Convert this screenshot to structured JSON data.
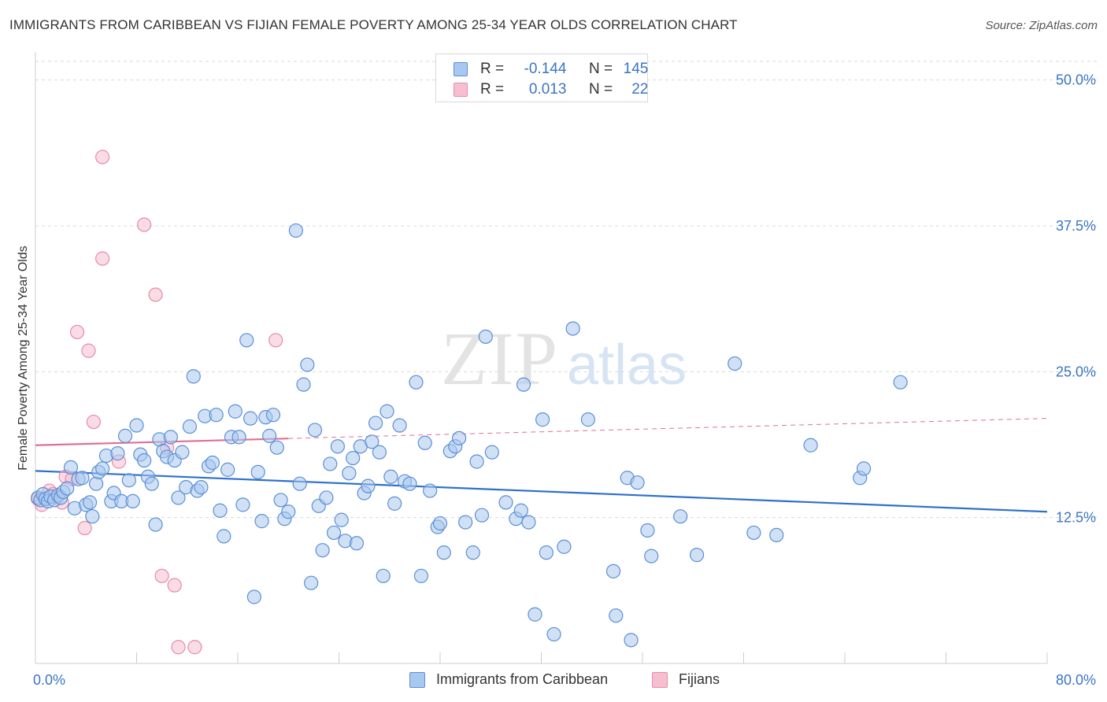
{
  "header": {
    "title": "IMMIGRANTS FROM CARIBBEAN VS FIJIAN FEMALE POVERTY AMONG 25-34 YEAR OLDS CORRELATION CHART",
    "source": "Source: ZipAtlas.com"
  },
  "watermark": {
    "zip": "ZIP",
    "atlas": "atlas"
  },
  "legend_top": {
    "rows": [
      {
        "r_label": "R =",
        "r_value": "-0.144",
        "n_label": "N =",
        "n_value": "145"
      },
      {
        "r_label": "R =",
        "r_value": "0.013",
        "n_label": "N =",
        "n_value": "22"
      }
    ]
  },
  "legend_bottom": {
    "items": [
      "Immigrants from Caribbean",
      "Fijians"
    ]
  },
  "colors": {
    "blue_fill": "#a9c8ef",
    "blue_stroke": "#5b8fd6",
    "blue_line": "#2e6fce",
    "pink_fill": "#f6bfd0",
    "pink_stroke": "#e88aa8",
    "pink_line": "#e06f96",
    "grid": "#d9d9d9",
    "axis_text": "#3a75c4"
  },
  "chart_data": {
    "type": "scatter",
    "title": "IMMIGRANTS FROM CARIBBEAN VS FIJIAN FEMALE POVERTY AMONG 25-34 YEAR OLDS CORRELATION CHART",
    "xlabel": "",
    "ylabel": "Female Poverty Among 25-34 Year Olds",
    "xlim": [
      0,
      80
    ],
    "ylim": [
      0,
      52
    ],
    "x_tick_labels": [
      "0.0%",
      "80.0%"
    ],
    "y_ticks": [
      12.5,
      25.0,
      37.5,
      50.0
    ],
    "y_tick_labels": [
      "12.5%",
      "25.0%",
      "37.5%",
      "50.0%"
    ],
    "grid": "horizontal dashed",
    "legend_position": "top-center",
    "series": [
      {
        "name": "Immigrants from Caribbean",
        "R": -0.144,
        "N": 145,
        "trend": {
          "x": [
            0,
            80
          ],
          "y": [
            16.5,
            13.0
          ]
        },
        "points": [
          [
            0.2,
            14.2
          ],
          [
            0.4,
            14.0
          ],
          [
            0.6,
            14.5
          ],
          [
            0.8,
            14.1
          ],
          [
            1.0,
            13.9
          ],
          [
            1.2,
            14.3
          ],
          [
            1.5,
            14.0
          ],
          [
            1.8,
            14.4
          ],
          [
            2.0,
            14.2
          ],
          [
            2.2,
            14.7
          ],
          [
            2.5,
            15.0
          ],
          [
            2.8,
            16.8
          ],
          [
            3.1,
            13.3
          ],
          [
            3.4,
            15.8
          ],
          [
            3.7,
            15.9
          ],
          [
            4.0,
            13.6
          ],
          [
            4.3,
            13.8
          ],
          [
            4.5,
            12.6
          ],
          [
            4.8,
            15.4
          ],
          [
            5.0,
            16.4
          ],
          [
            5.3,
            16.7
          ],
          [
            5.6,
            17.8
          ],
          [
            6.0,
            13.9
          ],
          [
            6.2,
            14.6
          ],
          [
            6.5,
            18.0
          ],
          [
            6.8,
            13.9
          ],
          [
            7.1,
            19.5
          ],
          [
            7.4,
            15.7
          ],
          [
            7.7,
            13.9
          ],
          [
            8.0,
            20.4
          ],
          [
            8.3,
            17.9
          ],
          [
            8.6,
            17.4
          ],
          [
            8.9,
            16.0
          ],
          [
            9.2,
            15.4
          ],
          [
            9.5,
            11.9
          ],
          [
            9.8,
            19.2
          ],
          [
            10.1,
            18.2
          ],
          [
            10.4,
            17.7
          ],
          [
            10.7,
            19.4
          ],
          [
            11.0,
            17.4
          ],
          [
            11.3,
            14.2
          ],
          [
            11.6,
            18.1
          ],
          [
            11.9,
            15.1
          ],
          [
            12.2,
            20.3
          ],
          [
            12.5,
            24.6
          ],
          [
            12.8,
            14.8
          ],
          [
            13.1,
            15.1
          ],
          [
            13.4,
            21.2
          ],
          [
            13.7,
            16.9
          ],
          [
            14.0,
            17.2
          ],
          [
            14.3,
            21.3
          ],
          [
            14.6,
            13.1
          ],
          [
            14.9,
            10.9
          ],
          [
            15.2,
            16.6
          ],
          [
            15.5,
            19.4
          ],
          [
            15.8,
            21.6
          ],
          [
            16.1,
            19.4
          ],
          [
            16.4,
            13.6
          ],
          [
            16.7,
            27.7
          ],
          [
            17.0,
            21.0
          ],
          [
            17.3,
            5.7
          ],
          [
            17.6,
            16.4
          ],
          [
            17.9,
            12.2
          ],
          [
            18.2,
            21.1
          ],
          [
            18.5,
            19.5
          ],
          [
            18.8,
            21.3
          ],
          [
            19.1,
            18.5
          ],
          [
            19.4,
            14.0
          ],
          [
            19.7,
            12.4
          ],
          [
            20.0,
            13.0
          ],
          [
            20.6,
            37.1
          ],
          [
            20.9,
            15.4
          ],
          [
            21.2,
            23.9
          ],
          [
            21.5,
            25.6
          ],
          [
            21.8,
            6.9
          ],
          [
            22.1,
            20.0
          ],
          [
            22.4,
            13.5
          ],
          [
            22.7,
            9.7
          ],
          [
            23.0,
            14.2
          ],
          [
            23.3,
            17.1
          ],
          [
            23.6,
            11.2
          ],
          [
            23.9,
            18.6
          ],
          [
            24.2,
            12.3
          ],
          [
            24.5,
            10.5
          ],
          [
            24.8,
            16.3
          ],
          [
            25.1,
            17.6
          ],
          [
            25.4,
            10.3
          ],
          [
            25.7,
            18.6
          ],
          [
            26.0,
            14.6
          ],
          [
            26.3,
            15.2
          ],
          [
            26.6,
            19.0
          ],
          [
            26.9,
            20.6
          ],
          [
            27.2,
            18.1
          ],
          [
            27.5,
            7.5
          ],
          [
            27.8,
            21.6
          ],
          [
            28.1,
            16.0
          ],
          [
            28.4,
            13.7
          ],
          [
            28.8,
            20.4
          ],
          [
            29.2,
            15.6
          ],
          [
            29.6,
            15.4
          ],
          [
            30.1,
            24.1
          ],
          [
            30.5,
            7.5
          ],
          [
            30.8,
            18.9
          ],
          [
            31.2,
            14.8
          ],
          [
            31.8,
            11.7
          ],
          [
            32.0,
            12.0
          ],
          [
            32.3,
            9.5
          ],
          [
            32.8,
            18.2
          ],
          [
            33.2,
            18.6
          ],
          [
            33.5,
            19.3
          ],
          [
            34.0,
            12.1
          ],
          [
            34.6,
            9.5
          ],
          [
            34.9,
            17.3
          ],
          [
            35.3,
            12.7
          ],
          [
            35.6,
            28.0
          ],
          [
            36.1,
            18.1
          ],
          [
            37.2,
            13.8
          ],
          [
            38.0,
            12.4
          ],
          [
            38.4,
            13.1
          ],
          [
            38.6,
            23.9
          ],
          [
            39.0,
            12.1
          ],
          [
            39.5,
            4.2
          ],
          [
            40.1,
            20.9
          ],
          [
            40.4,
            9.5
          ],
          [
            41.0,
            2.5
          ],
          [
            41.8,
            10.0
          ],
          [
            42.5,
            28.7
          ],
          [
            43.7,
            20.9
          ],
          [
            45.7,
            7.9
          ],
          [
            45.9,
            4.1
          ],
          [
            46.8,
            15.9
          ],
          [
            47.1,
            2.0
          ],
          [
            47.6,
            15.5
          ],
          [
            48.4,
            11.4
          ],
          [
            48.7,
            9.2
          ],
          [
            51.0,
            12.6
          ],
          [
            52.3,
            9.3
          ],
          [
            55.3,
            25.7
          ],
          [
            56.8,
            11.2
          ],
          [
            58.6,
            11.0
          ],
          [
            61.3,
            18.7
          ],
          [
            65.2,
            15.9
          ],
          [
            65.5,
            16.7
          ],
          [
            68.4,
            24.1
          ]
        ]
      },
      {
        "name": "Fijians",
        "R": 0.013,
        "N": 22,
        "trend": {
          "x": [
            0,
            80
          ],
          "y": [
            18.7,
            21.0
          ]
        },
        "points": [
          [
            0.2,
            14.1
          ],
          [
            0.5,
            13.6
          ],
          [
            1.1,
            14.8
          ],
          [
            1.4,
            14.5
          ],
          [
            2.1,
            13.8
          ],
          [
            2.4,
            16.0
          ],
          [
            2.9,
            15.8
          ],
          [
            3.3,
            28.4
          ],
          [
            3.9,
            11.6
          ],
          [
            4.2,
            26.8
          ],
          [
            4.6,
            20.7
          ],
          [
            5.3,
            43.4
          ],
          [
            5.3,
            34.7
          ],
          [
            6.6,
            17.3
          ],
          [
            8.6,
            37.6
          ],
          [
            9.5,
            31.6
          ],
          [
            10.0,
            7.5
          ],
          [
            10.4,
            18.5
          ],
          [
            11.0,
            6.7
          ],
          [
            11.3,
            1.4
          ],
          [
            12.6,
            1.4
          ],
          [
            19.0,
            27.7
          ]
        ]
      }
    ]
  }
}
